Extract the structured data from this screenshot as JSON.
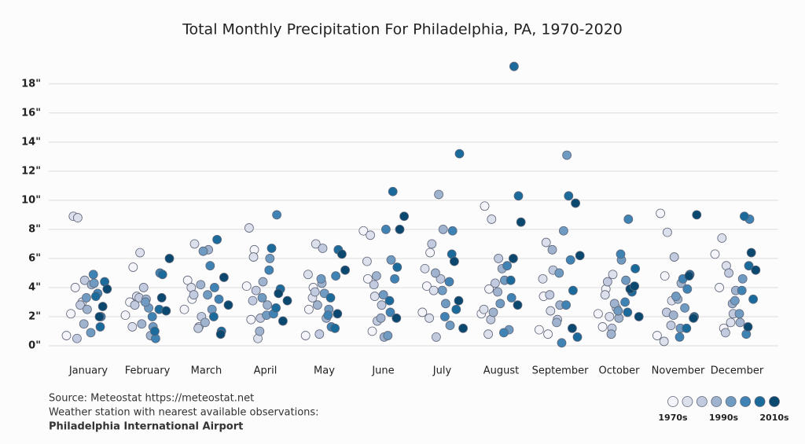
{
  "chart_data": {
    "type": "strip",
    "title": "Total Monthly Precipitation For Philadelphia, PA, 1970-2020",
    "categories": [
      "January",
      "February",
      "March",
      "April",
      "May",
      "June",
      "July",
      "August",
      "September",
      "October",
      "November",
      "December"
    ],
    "ylim": [
      0,
      19.5
    ],
    "yticks": [
      {
        "value": 0,
        "label": "0\""
      },
      {
        "value": 2,
        "label": "2\""
      },
      {
        "value": 4,
        "label": "4\""
      },
      {
        "value": 6,
        "label": "6\""
      },
      {
        "value": 8,
        "label": "8\""
      },
      {
        "value": 10,
        "label": "10\""
      },
      {
        "value": 12,
        "label": "12\""
      },
      {
        "value": 14,
        "label": "14\""
      },
      {
        "value": 16,
        "label": "16\""
      },
      {
        "value": 18,
        "label": "18\""
      }
    ],
    "grid": true,
    "series": [
      {
        "color": "#f4f4fa",
        "values": [
          [
            0.7,
            2.2,
            4.0
          ],
          [
            5.4,
            2.1,
            3.0
          ],
          [
            4.5,
            3.2,
            2.5
          ],
          [
            6.6,
            4.1,
            1.8
          ],
          [
            2.5,
            4.0,
            0.7
          ],
          [
            7.9,
            4.6,
            1.0
          ],
          [
            6.4,
            2.3,
            4.1
          ],
          [
            9.6,
            3.9,
            2.2
          ],
          [
            1.1,
            3.4,
            0.8
          ],
          [
            3.9,
            2.2,
            1.3
          ],
          [
            9.1,
            4.8,
            0.7
          ],
          [
            6.3,
            4.0,
            1.2
          ]
        ]
      },
      {
        "color": "#dcdfec",
        "values": [
          [
            8.9,
            8.8,
            3.0
          ],
          [
            6.4,
            1.3,
            3.4
          ],
          [
            7.0,
            1.3,
            4.0
          ],
          [
            8.1,
            6.1,
            0.5
          ],
          [
            7.0,
            4.9,
            3.3
          ],
          [
            7.6,
            3.4,
            5.8
          ],
          [
            5.3,
            1.9,
            3.8
          ],
          [
            8.7,
            2.5,
            0.8
          ],
          [
            7.1,
            2.4,
            4.6
          ],
          [
            4.9,
            3.5,
            2.0
          ],
          [
            7.8,
            3.1,
            0.3
          ],
          [
            7.4,
            5.5,
            1.6
          ]
        ]
      },
      {
        "color": "#c2cadf",
        "values": [
          [
            2.8,
            4.5,
            0.5
          ],
          [
            2.8,
            3.3,
            4.0
          ],
          [
            2.0,
            3.5,
            1.2
          ],
          [
            3.8,
            1.9,
            3.1
          ],
          [
            6.7,
            3.7,
            0.8
          ],
          [
            1.7,
            2.8,
            4.2
          ],
          [
            7.0,
            0.6,
            4.6
          ],
          [
            6.0,
            1.8,
            4.3
          ],
          [
            5.2,
            1.8,
            3.5
          ],
          [
            4.4,
            1.2,
            2.6
          ],
          [
            6.1,
            2.3,
            1.4
          ],
          [
            5.0,
            2.2,
            0.9
          ]
        ]
      },
      {
        "color": "#9fb3cf",
        "values": [
          [
            2.5,
            4.2,
            1.5
          ],
          [
            1.5,
            3.2,
            0.7
          ],
          [
            6.6,
            4.2,
            1.6
          ],
          [
            4.4,
            2.8,
            1.0
          ],
          [
            2.8,
            4.3,
            1.9
          ],
          [
            0.6,
            4.8,
            1.9
          ],
          [
            10.4,
            8.0,
            5.0
          ],
          [
            2.3,
            3.7,
            5.3
          ],
          [
            2.8,
            6.6,
            1.6
          ],
          [
            2.9,
            1.9,
            0.8
          ],
          [
            4.3,
            2.1,
            3.2
          ],
          [
            3.8,
            1.6,
            2.9
          ]
        ]
      },
      {
        "color": "#6f9bc3",
        "values": [
          [
            4.3,
            3.3,
            0.9
          ],
          [
            2.6,
            1.3,
            3.0
          ],
          [
            6.5,
            3.5,
            2.5
          ],
          [
            6.0,
            3.3,
            2.1
          ],
          [
            3.6,
            2.5,
            4.6
          ],
          [
            5.9,
            3.5,
            0.7
          ],
          [
            2.9,
            1.4,
            3.8
          ],
          [
            2.9,
            4.5,
            1.1
          ],
          [
            13.1,
            5.0,
            7.9
          ],
          [
            5.9,
            4.5,
            2.4
          ],
          [
            3.4,
            1.2,
            2.6
          ],
          [
            4.6,
            3.1,
            2.2
          ]
        ]
      },
      {
        "color": "#3f83b5",
        "values": [
          [
            2.0,
            4.9,
            3.6
          ],
          [
            0.5,
            5.0,
            2.0
          ],
          [
            5.5,
            4.0,
            3.2
          ],
          [
            9.0,
            5.2,
            2.2
          ],
          [
            1.3,
            4.8,
            2.1
          ],
          [
            8.0,
            2.3,
            4.6
          ],
          [
            7.9,
            2.0,
            4.4
          ],
          [
            5.5,
            3.3,
            0.9
          ],
          [
            0.2,
            2.8,
            5.9
          ],
          [
            8.7,
            6.3,
            3.0
          ],
          [
            4.6,
            3.9,
            0.6
          ],
          [
            8.7,
            3.8,
            0.8
          ]
        ]
      },
      {
        "color": "#1b6a9c",
        "values": [
          [
            3.4,
            1.3,
            4.4
          ],
          [
            4.9,
            1.0,
            2.5
          ],
          [
            7.3,
            1.0,
            2.0
          ],
          [
            6.7,
            2.6,
            3.9
          ],
          [
            6.6,
            3.3,
            1.2
          ],
          [
            10.6,
            5.4,
            3.1
          ],
          [
            13.2,
            6.3,
            2.5
          ],
          [
            19.2,
            10.3,
            4.5
          ],
          [
            10.3,
            3.8,
            0.6
          ],
          [
            5.3,
            2.3,
            3.7
          ],
          [
            4.9,
            2.0,
            1.2
          ],
          [
            8.9,
            5.5,
            3.2
          ]
        ]
      },
      {
        "color": "#0b4870",
        "values": [
          [
            2.7,
            3.9,
            2.0
          ],
          [
            6.0,
            3.3,
            2.4
          ],
          [
            4.7,
            2.8,
            0.8
          ],
          [
            3.6,
            1.7,
            3.1
          ],
          [
            5.2,
            2.2,
            6.3
          ],
          [
            8.0,
            8.9,
            1.9
          ],
          [
            5.8,
            3.1,
            1.2
          ],
          [
            8.5,
            6.0,
            2.8
          ],
          [
            9.8,
            6.2,
            1.2
          ],
          [
            3.9,
            4.1,
            2.0
          ],
          [
            9.0,
            4.8,
            1.9
          ],
          [
            6.4,
            5.2,
            1.3
          ]
        ]
      }
    ],
    "legend_labels": [
      "1970s",
      "1990s",
      "2010s"
    ],
    "source": "Source: Meteostat https://meteostat.net",
    "station_note": "Weather station with nearest available observations:",
    "station": "Philadelphia International Airport"
  }
}
